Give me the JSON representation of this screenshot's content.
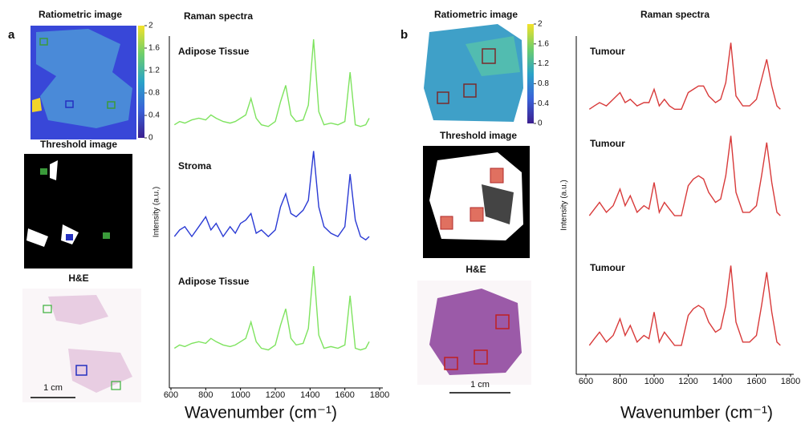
{
  "figure": {
    "panels": [
      {
        "letter": "a",
        "ratiometric_title": "Ratiometric image",
        "colorbar_ticks": [
          0,
          0.4,
          0.8,
          1.2,
          1.6,
          2
        ],
        "threshold_title": "Threshold image",
        "he_title": "H&E",
        "scale_bar": "1 cm"
      },
      {
        "letter": "b",
        "ratiometric_title": "Ratiometric image",
        "colorbar_ticks": [
          0,
          0.4,
          0.8,
          1.2,
          1.6,
          2
        ],
        "threshold_title": "Threshold image",
        "he_title": "H&E",
        "scale_bar": "1 cm"
      }
    ]
  },
  "chart_data": [
    {
      "type": "line",
      "title": "Raman spectra",
      "x_label": "Wavenumber (cm⁻¹)",
      "y_label": "Intensity (a.u.)",
      "xlim": [
        600,
        1800
      ],
      "xticks": [
        600,
        800,
        1000,
        1200,
        1400,
        1600,
        1800
      ],
      "ylim": [
        0,
        10
      ],
      "x": [
        620,
        650,
        680,
        720,
        760,
        800,
        830,
        860,
        900,
        940,
        970,
        1000,
        1030,
        1060,
        1090,
        1120,
        1160,
        1200,
        1230,
        1260,
        1290,
        1320,
        1360,
        1390,
        1420,
        1450,
        1480,
        1520,
        1560,
        1600,
        1630,
        1660,
        1690,
        1720,
        1740
      ],
      "series": [
        {
          "name": "Adipose Tissue",
          "color": "#7ee35f",
          "values": [
            7.3,
            7.4,
            7.35,
            7.45,
            7.5,
            7.45,
            7.6,
            7.5,
            7.4,
            7.35,
            7.4,
            7.5,
            7.6,
            8.1,
            7.5,
            7.3,
            7.25,
            7.4,
            8.0,
            8.5,
            7.6,
            7.4,
            7.45,
            7.9,
            9.9,
            7.7,
            7.3,
            7.35,
            7.3,
            7.4,
            8.9,
            7.3,
            7.25,
            7.3,
            7.5
          ]
        },
        {
          "name": "Stroma",
          "color": "#2a3ad4",
          "values": [
            3.9,
            4.1,
            4.2,
            3.9,
            4.2,
            4.5,
            4.1,
            4.3,
            3.9,
            4.2,
            4.0,
            4.3,
            4.4,
            4.6,
            4.0,
            4.1,
            3.9,
            4.1,
            4.8,
            5.2,
            4.6,
            4.5,
            4.7,
            5.0,
            6.5,
            4.8,
            4.2,
            4.0,
            3.9,
            4.2,
            5.8,
            4.4,
            3.9,
            3.8,
            3.9
          ]
        },
        {
          "name": "Adipose Tissue",
          "color": "#7ee35f",
          "values": [
            0.5,
            0.6,
            0.55,
            0.65,
            0.7,
            0.65,
            0.8,
            0.7,
            0.6,
            0.55,
            0.6,
            0.7,
            0.8,
            1.3,
            0.7,
            0.5,
            0.45,
            0.6,
            1.2,
            1.7,
            0.8,
            0.6,
            0.65,
            1.1,
            3.0,
            0.9,
            0.5,
            0.55,
            0.5,
            0.6,
            2.1,
            0.5,
            0.45,
            0.5,
            0.7
          ]
        }
      ]
    },
    {
      "type": "line",
      "title": "Raman spectra",
      "x_label": "Wavenumber (cm⁻¹)",
      "y_label": "Intensity (a.u.)",
      "xlim": [
        600,
        1800
      ],
      "xticks": [
        600,
        800,
        1000,
        1200,
        1400,
        1600,
        1800
      ],
      "ylim": [
        0,
        10
      ],
      "x": [
        620,
        650,
        680,
        720,
        760,
        800,
        830,
        860,
        900,
        940,
        970,
        1000,
        1030,
        1060,
        1090,
        1120,
        1160,
        1200,
        1230,
        1260,
        1290,
        1320,
        1360,
        1390,
        1420,
        1450,
        1480,
        1520,
        1560,
        1600,
        1630,
        1660,
        1690,
        1720,
        1740
      ],
      "series": [
        {
          "name": "Tumour",
          "color": "#d83a3a",
          "values": [
            7.8,
            7.9,
            8.0,
            7.9,
            8.1,
            8.3,
            8.0,
            8.1,
            7.9,
            8.0,
            8.0,
            8.4,
            7.9,
            8.1,
            7.9,
            7.8,
            7.8,
            8.3,
            8.4,
            8.5,
            8.5,
            8.2,
            8.0,
            8.1,
            8.6,
            9.8,
            8.2,
            7.9,
            7.9,
            8.1,
            8.7,
            9.3,
            8.5,
            7.9,
            7.8
          ]
        },
        {
          "name": "Tumour",
          "color": "#d83a3a",
          "values": [
            4.6,
            4.8,
            5.0,
            4.7,
            4.9,
            5.4,
            4.9,
            5.2,
            4.7,
            4.9,
            4.8,
            5.6,
            4.7,
            5.0,
            4.8,
            4.6,
            4.6,
            5.5,
            5.7,
            5.8,
            5.7,
            5.3,
            5.0,
            5.1,
            5.8,
            7.0,
            5.3,
            4.7,
            4.7,
            4.9,
            5.8,
            6.8,
            5.6,
            4.7,
            4.6
          ]
        },
        {
          "name": "Tumour",
          "color": "#d83a3a",
          "values": [
            0.7,
            0.9,
            1.1,
            0.8,
            1.0,
            1.5,
            1.0,
            1.3,
            0.8,
            1.0,
            0.9,
            1.7,
            0.8,
            1.1,
            0.9,
            0.7,
            0.7,
            1.6,
            1.8,
            1.9,
            1.8,
            1.4,
            1.1,
            1.2,
            1.9,
            3.1,
            1.4,
            0.8,
            0.8,
            1.0,
            1.9,
            2.9,
            1.7,
            0.8,
            0.7
          ]
        }
      ]
    }
  ]
}
